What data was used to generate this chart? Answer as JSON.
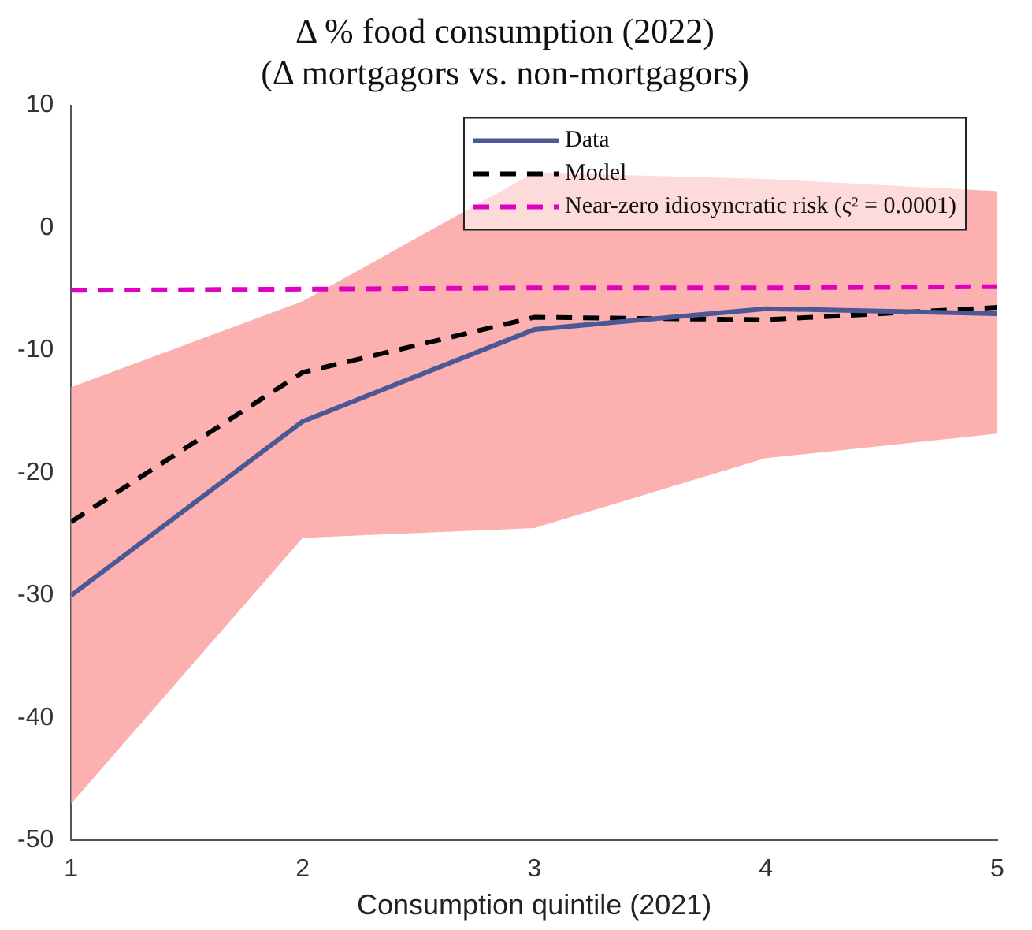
{
  "chart_data": {
    "type": "line",
    "title": "Δ % food consumption (2022)",
    "subtitle": "(Δ mortgagors vs. non-mortgagors)",
    "xlabel": "Consumption quintile (2021)",
    "x": [
      1,
      2,
      3,
      4,
      5
    ],
    "xlim": [
      1,
      5
    ],
    "xticks": [
      1,
      2,
      3,
      4,
      5
    ],
    "ylim": [
      -50,
      10
    ],
    "yticks": [
      -50,
      -40,
      -30,
      -20,
      -10,
      0,
      10
    ],
    "grid": false,
    "legend": "top right",
    "marker": "none",
    "series": [
      {
        "name": "Data",
        "color": "#4a5896",
        "values": [
          -30,
          -15.8,
          -8.3,
          -6.6,
          -7
        ],
        "line_style": "solid",
        "lower": [
          -47,
          -25.3,
          -24.5,
          -18.8,
          -16.8
        ],
        "upper": [
          -13,
          -6,
          4.5,
          4,
          3
        ]
      },
      {
        "name": "Model",
        "color": "#000000",
        "values": [
          -24,
          -11.8,
          -7.3,
          -7.5,
          -6.5
        ],
        "line_style": "dashed"
      },
      {
        "name": "Near-zero idiosyncratic risk (ς² = 0.0001)",
        "color": "#e000c0",
        "values": [
          -5.1,
          -5,
          -4.9,
          -4.9,
          -4.8
        ],
        "line_style": "dashed"
      }
    ]
  }
}
